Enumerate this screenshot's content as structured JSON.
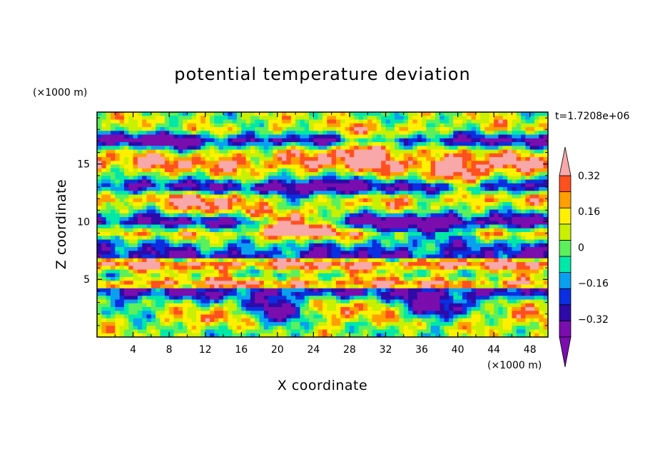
{
  "chart_data": {
    "type": "heatmap",
    "title": "potential temperature deviation",
    "xlabel": "X coordinate",
    "ylabel": "Z coordinate",
    "x_unit": "(×1000 m)",
    "y_unit": "(×1000 m)",
    "time_label": "t=1.7208e+06",
    "xlim": [
      0,
      50
    ],
    "ylim": [
      0,
      19.5
    ],
    "x_ticks": [
      4,
      8,
      12,
      16,
      20,
      24,
      28,
      32,
      36,
      40,
      44,
      48
    ],
    "y_ticks": [
      5,
      10,
      15
    ],
    "colorbar": {
      "levels": [
        -0.4,
        -0.32,
        -0.24,
        -0.16,
        -0.08,
        0,
        0.08,
        0.16,
        0.24,
        0.32,
        0.4
      ],
      "labeled_ticks": [
        -0.32,
        -0.16,
        0,
        0.16,
        0.32
      ],
      "tick_labels": [
        "−0.32",
        "−0.16",
        "0",
        "0.16",
        "0.32"
      ],
      "colors": [
        "#7a0dad",
        "#2e0aa8",
        "#0a2ee0",
        "#0aa0f0",
        "#00e8a8",
        "#5cf05c",
        "#c8f000",
        "#fff000",
        "#ffa000",
        "#ff5020",
        "#f01e1e"
      ],
      "under_color": "#7a0dad",
      "over_color": "#f8a8a8"
    },
    "bands": [
      {
        "z": 0.0,
        "v": 0.05
      },
      {
        "z": 1.5,
        "v": 0.12
      },
      {
        "z": 3.0,
        "v": -0.05
      },
      {
        "z": 4.0,
        "v": -0.35
      },
      {
        "z": 4.5,
        "v": 0.45
      },
      {
        "z": 5.0,
        "v": 0.2
      },
      {
        "z": 5.5,
        "v": 0.05
      },
      {
        "z": 6.0,
        "v": 0.3
      },
      {
        "z": 6.5,
        "v": 0.45
      },
      {
        "z": 7.0,
        "v": -0.3
      },
      {
        "z": 8.0,
        "v": -0.1
      },
      {
        "z": 9.0,
        "v": 0.2
      },
      {
        "z": 10.0,
        "v": -0.38
      },
      {
        "z": 11.0,
        "v": 0.1
      },
      {
        "z": 12.0,
        "v": 0.25
      },
      {
        "z": 13.0,
        "v": -0.35
      },
      {
        "z": 14.0,
        "v": 0.1
      },
      {
        "z": 15.0,
        "v": 0.38
      },
      {
        "z": 16.0,
        "v": 0.2
      },
      {
        "z": 17.0,
        "v": -0.35
      },
      {
        "z": 18.0,
        "v": 0.15
      },
      {
        "z": 19.5,
        "v": 0.08
      }
    ],
    "patches": [
      {
        "x": 22,
        "z": 9.8,
        "v": 0.5
      },
      {
        "x": 7,
        "z": 17.2,
        "v": -0.45
      },
      {
        "x": 30,
        "z": 16.5,
        "v": 0.4
      },
      {
        "x": 41,
        "z": 14.0,
        "v": 0.45
      },
      {
        "x": 12,
        "z": 11.5,
        "v": 0.45
      },
      {
        "x": 19,
        "z": 2.0,
        "v": -0.4
      },
      {
        "x": 38,
        "z": 2.5,
        "v": -0.35
      },
      {
        "x": 14,
        "z": 2.0,
        "v": 0.35
      },
      {
        "x": 28,
        "z": 2.5,
        "v": 0.3
      },
      {
        "x": 46,
        "z": 2.0,
        "v": 0.3
      },
      {
        "x": 36,
        "z": 9.5,
        "v": -0.45
      },
      {
        "x": 46,
        "z": 10.0,
        "v": -0.45
      },
      {
        "x": 24,
        "z": 12.5,
        "v": -0.4
      },
      {
        "x": 33,
        "z": 17.0,
        "v": -0.35
      }
    ]
  }
}
